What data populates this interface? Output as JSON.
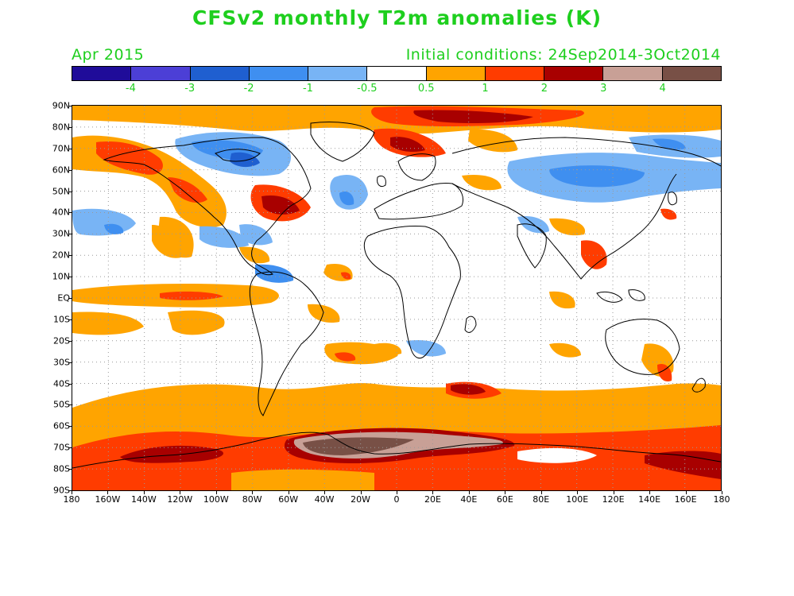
{
  "title": "CFSv2 monthly T2m anomalies (K)",
  "valid_month": "Apr 2015",
  "initial_conditions": "Initial conditions: 24Sep2014-3Oct2014",
  "colorbar": {
    "colors": [
      "#1f0c99",
      "#4c3fd6",
      "#1f5fd0",
      "#3f8ff0",
      "#78b4f5",
      "#ffffff",
      "#ffa400",
      "#ff3c00",
      "#a80000",
      "#c8a096",
      "#785046"
    ],
    "labels": [
      "-4",
      "-3",
      "-2",
      "-1",
      "-0.5",
      "0.5",
      "1",
      "2",
      "3",
      "4"
    ]
  },
  "map": {
    "lat_labels": [
      "90N",
      "80N",
      "70N",
      "60N",
      "50N",
      "40N",
      "30N",
      "20N",
      "10N",
      "EQ",
      "10S",
      "20S",
      "30S",
      "40S",
      "50S",
      "60S",
      "70S",
      "80S",
      "90S"
    ],
    "lon_labels": [
      "180",
      "160W",
      "140W",
      "120W",
      "100W",
      "80W",
      "60W",
      "40W",
      "20W",
      "0",
      "20E",
      "40E",
      "60E",
      "80E",
      "100E",
      "120E",
      "140E",
      "160E",
      "180"
    ],
    "anomaly_regions": [
      {
        "name": "arctic-siberia",
        "level": "2-3"
      },
      {
        "name": "alaska-nw-canada",
        "level": "1-2"
      },
      {
        "name": "northern-canada",
        "level": "-1 to -2"
      },
      {
        "name": "eastern-us-nw-atlantic",
        "level": "2-3"
      },
      {
        "name": "central-asia",
        "level": "-0.5 to -1"
      },
      {
        "name": "east-pacific-equatorial",
        "level": "0.5-1"
      },
      {
        "name": "southern-ocean-ring",
        "level": "0.5-2"
      },
      {
        "name": "antarctica-weddell",
        "level": "3-4+"
      }
    ]
  }
}
